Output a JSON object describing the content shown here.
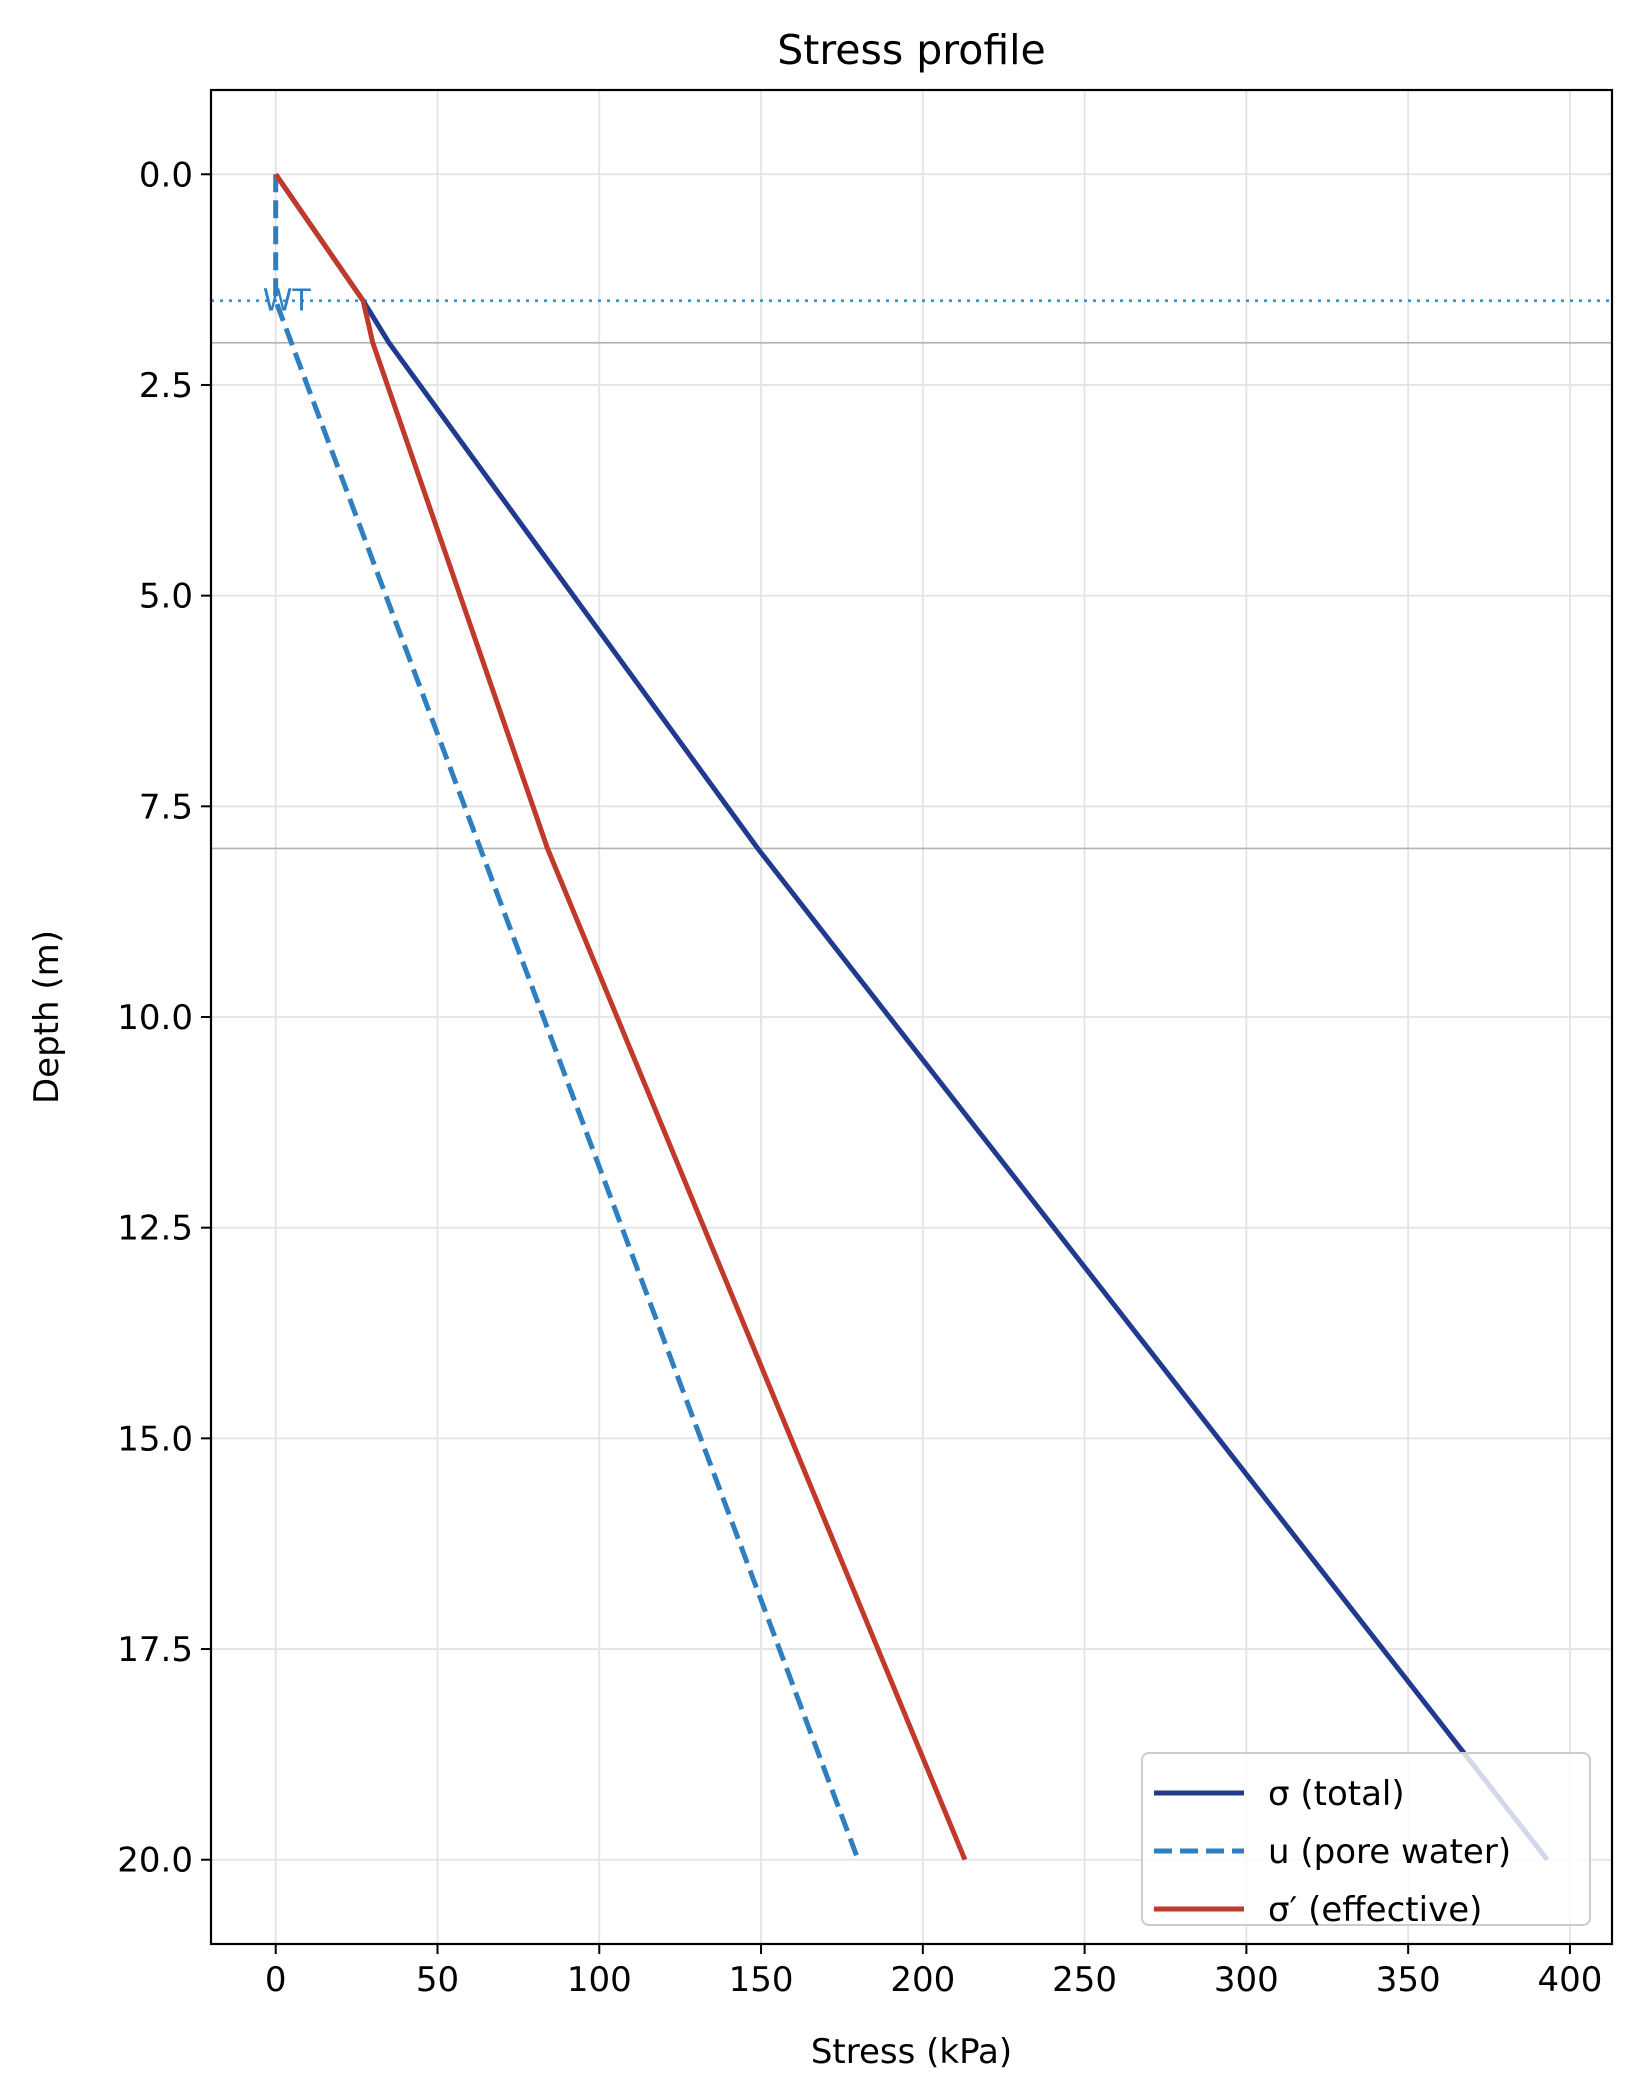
{
  "chart_data": {
    "type": "line",
    "title": "Stress profile",
    "xlabel": "Stress (kPa)",
    "ylabel": "Depth (m)",
    "xlim": [
      -20,
      413
    ],
    "ylim": [
      21,
      -1
    ],
    "y_inverted": true,
    "xticks": [
      0,
      50,
      100,
      150,
      200,
      250,
      300,
      350,
      400
    ],
    "xtick_labels": [
      "0",
      "50",
      "100",
      "150",
      "200",
      "250",
      "300",
      "350",
      "400"
    ],
    "yticks": [
      0,
      2.5,
      5,
      7.5,
      10,
      12.5,
      15,
      17.5,
      20
    ],
    "ytick_labels": [
      "0.0",
      "2.5",
      "5.0",
      "7.5",
      "10.0",
      "12.5",
      "15.0",
      "17.5",
      "20.0"
    ],
    "grid": true,
    "legend_position": "lower right",
    "series": [
      {
        "name": "σ (total)",
        "color": "#1f3a8f",
        "style": "solid",
        "points": [
          [
            0,
            0
          ],
          [
            27,
            1.5
          ],
          [
            35,
            2
          ],
          [
            149,
            8
          ],
          [
            393,
            20
          ]
        ]
      },
      {
        "name": "u (pore water)",
        "color": "#2e7fbf",
        "style": "dashed",
        "points": [
          [
            0,
            0
          ],
          [
            0,
            1.5
          ],
          [
            180,
            20
          ]
        ]
      },
      {
        "name": "σ′ (effective)",
        "color": "#c0392b",
        "style": "solid",
        "points": [
          [
            0,
            0
          ],
          [
            27,
            1.5
          ],
          [
            30,
            2
          ],
          [
            84,
            8
          ],
          [
            213,
            20
          ]
        ]
      }
    ],
    "reference_lines": [
      {
        "depth": 1.5,
        "label": "WT",
        "color": "#3a8fd6",
        "style": "dotted"
      },
      {
        "depth": 2,
        "color": "#b3b3b3",
        "style": "solid"
      },
      {
        "depth": 8,
        "color": "#b3b3b3",
        "style": "solid"
      }
    ]
  }
}
